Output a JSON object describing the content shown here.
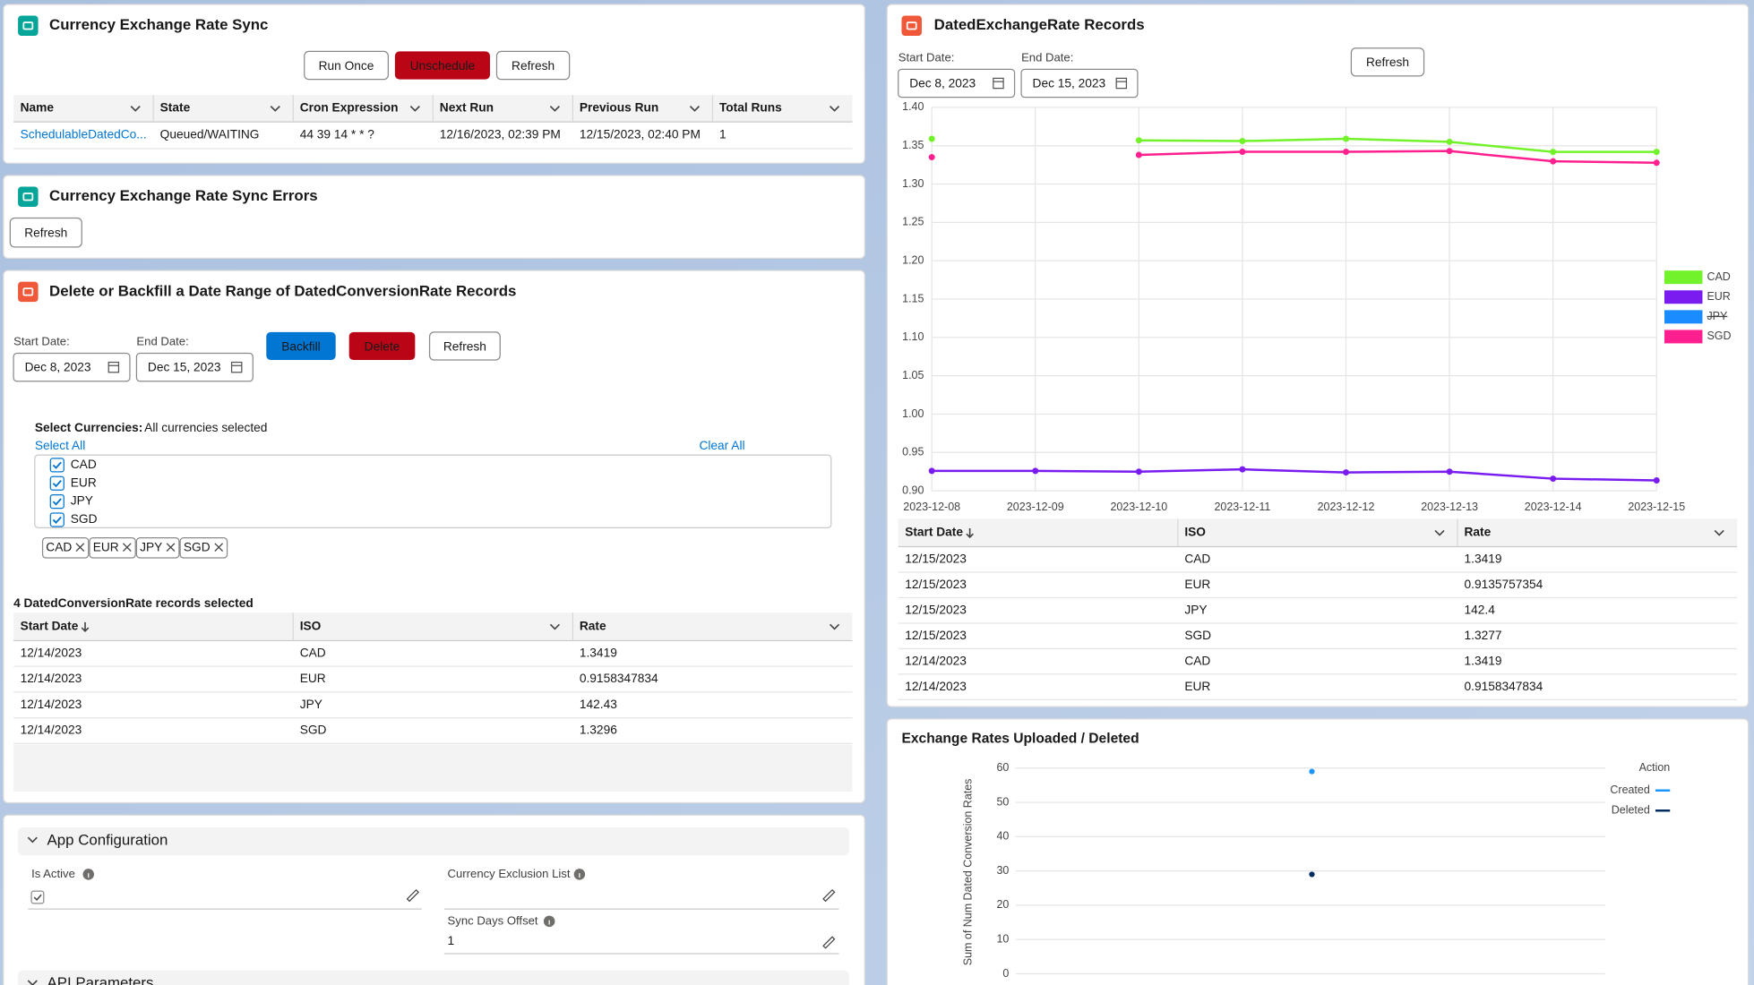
{
  "sync": {
    "title": "Currency Exchange Rate Sync",
    "buttons": [
      "Run Once",
      "Unschedule",
      "Refresh"
    ],
    "table": {
      "columns": [
        "Name",
        "State",
        "Cron Expression",
        "Next Run",
        "Previous Run",
        "Total Runs"
      ],
      "rows": [
        [
          "SchedulableDatedCo...",
          "Queued/WAITING",
          "44 39 14 * * ?",
          "12/16/2023, 02:39 PM",
          "12/15/2023, 02:40 PM",
          "1"
        ]
      ]
    }
  },
  "errors": {
    "title": "Currency Exchange Rate Sync Errors",
    "button": "Refresh"
  },
  "backfill": {
    "title": "Delete or Backfill a Date Range of DatedConversionRate Records",
    "start_label": "Start Date:",
    "start": "Dec 8, 2023",
    "end_label": "End Date:",
    "end": "Dec 15, 2023",
    "buttons": [
      "Backfill",
      "Delete",
      "Refresh"
    ],
    "select_label": "Select Currencies:",
    "select_status": "All currencies selected",
    "select_all": "Select All",
    "clear_all": "Clear All",
    "options": [
      "CAD",
      "EUR",
      "JPY",
      "SGD"
    ],
    "pills": [
      "CAD",
      "EUR",
      "JPY",
      "SGD"
    ],
    "selected": "4 DatedConversionRate records selected",
    "table": {
      "columns": [
        "Start Date",
        "ISO",
        "Rate"
      ],
      "rows": [
        [
          "12/14/2023",
          "CAD",
          "1.3419"
        ],
        [
          "12/14/2023",
          "EUR",
          "0.9158347834"
        ],
        [
          "12/14/2023",
          "JPY",
          "142.43"
        ],
        [
          "12/14/2023",
          "SGD",
          "1.3296"
        ]
      ]
    }
  },
  "config": {
    "title": "App Configuration",
    "fields": [
      {
        "label": "Is Active"
      },
      {
        "label": "Currency Exclusion List"
      },
      {
        "label": "Sync Days Offset",
        "value": "1"
      }
    ],
    "next_section": "API Parameters"
  },
  "records": {
    "title": "DatedExchangeRate Records",
    "start_label": "Start Date:",
    "start": "Dec 8, 2023",
    "end_label": "End Date:",
    "end": "Dec 15, 2023",
    "button": "Refresh",
    "table": {
      "columns": [
        "Start Date",
        "ISO",
        "Rate"
      ],
      "rows": [
        [
          "12/15/2023",
          "CAD",
          "1.3419"
        ],
        [
          "12/15/2023",
          "EUR",
          "0.9135757354"
        ],
        [
          "12/15/2023",
          "JPY",
          "142.4"
        ],
        [
          "12/15/2023",
          "SGD",
          "1.3277"
        ],
        [
          "12/14/2023",
          "CAD",
          "1.3419"
        ],
        [
          "12/14/2023",
          "EUR",
          "0.9158347834"
        ]
      ]
    }
  },
  "chart_data": [
    {
      "type": "line",
      "x": [
        "2023-12-08",
        "2023-12-09",
        "2023-12-10",
        "2023-12-11",
        "2023-12-12",
        "2023-12-13",
        "2023-12-14",
        "2023-12-15"
      ],
      "series": [
        {
          "name": "CAD",
          "color": "#72f22a",
          "values": [
            1.359,
            null,
            1.357,
            1.356,
            1.359,
            1.355,
            1.3419,
            1.3419
          ]
        },
        {
          "name": "EUR",
          "color": "#7a1cf0",
          "values": [
            0.926,
            0.926,
            0.925,
            0.928,
            0.924,
            0.925,
            0.9158347834,
            0.9135757354
          ]
        },
        {
          "name": "JPY",
          "color": "#1a8cff",
          "hidden": true,
          "values": [
            null,
            null,
            null,
            null,
            null,
            null,
            null,
            null
          ]
        },
        {
          "name": "SGD",
          "color": "#ff1f8f",
          "values": [
            1.335,
            null,
            1.338,
            1.342,
            1.342,
            1.343,
            1.3296,
            1.3277
          ]
        }
      ],
      "ylim": [
        0.9,
        1.4
      ],
      "yticks": [
        {
          "value": 0.9,
          "label": "0.90"
        },
        0.95,
        {
          "value": 1.0,
          "label": "1.00"
        },
        1.05,
        {
          "value": 1.1,
          "label": "1.10"
        },
        1.15,
        {
          "value": 1.2,
          "label": "1.20"
        },
        1.25,
        {
          "value": 1.3,
          "label": "1.30"
        },
        1.35,
        {
          "value": 1.4,
          "label": "1.40"
        }
      ],
      "grid": true,
      "legend": "right"
    },
    {
      "type": "scatter",
      "title": "Exchange Rates Uploaded / Deleted",
      "y_label": "Sum of Num Dated Conversion Rates",
      "legend_title": "Action",
      "categories": [
        null
      ],
      "series": [
        {
          "name": "Created",
          "color": "#1b96ff",
          "values": [
            59
          ]
        },
        {
          "name": "Deleted",
          "color": "#032d60",
          "values": [
            29
          ]
        }
      ],
      "ylim": [
        0,
        60
      ],
      "yticks": [
        0,
        10,
        20,
        30,
        40,
        50,
        60
      ],
      "grid": true,
      "legend": "top-right"
    }
  ]
}
